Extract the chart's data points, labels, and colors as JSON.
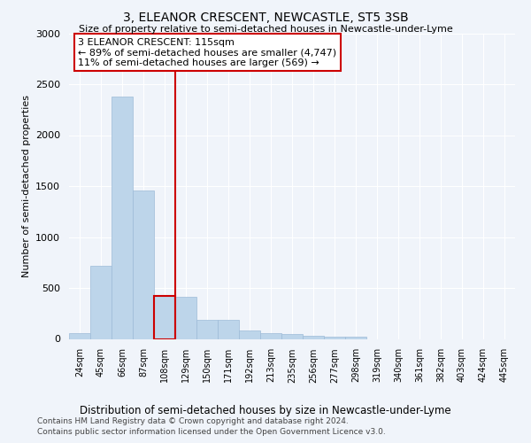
{
  "title": "3, ELEANOR CRESCENT, NEWCASTLE, ST5 3SB",
  "subtitle": "Size of property relative to semi-detached houses in Newcastle-under-Lyme",
  "xlabel_bottom": "Distribution of semi-detached houses by size in Newcastle-under-Lyme",
  "ylabel": "Number of semi-detached properties",
  "footer1": "Contains HM Land Registry data © Crown copyright and database right 2024.",
  "footer2": "Contains public sector information licensed under the Open Government Licence v3.0.",
  "categories": [
    "24sqm",
    "45sqm",
    "66sqm",
    "87sqm",
    "108sqm",
    "129sqm",
    "150sqm",
    "171sqm",
    "192sqm",
    "213sqm",
    "235sqm",
    "256sqm",
    "277sqm",
    "298sqm",
    "319sqm",
    "340sqm",
    "361sqm",
    "382sqm",
    "403sqm",
    "424sqm",
    "445sqm"
  ],
  "values": [
    60,
    720,
    2380,
    1460,
    420,
    415,
    185,
    185,
    85,
    55,
    45,
    30,
    22,
    18,
    0,
    0,
    0,
    0,
    0,
    0,
    0
  ],
  "bar_color": "#bdd5ea",
  "bar_edge_color": "#9dbbd8",
  "highlight_bar_index": 4,
  "highlight_bar_color": "#bdd5ea",
  "highlight_bar_edge_color": "#cc0000",
  "vline_color": "#cc0000",
  "ylim": [
    0,
    3000
  ],
  "yticks": [
    0,
    500,
    1000,
    1500,
    2000,
    2500,
    3000
  ],
  "annotation_text": "3 ELEANOR CRESCENT: 115sqm",
  "annotation_line1": "← 89% of semi-detached houses are smaller (4,747)",
  "annotation_line2": "11% of semi-detached houses are larger (569) →",
  "annotation_box_color": "#ffffff",
  "annotation_box_edge": "#cc0000",
  "bg_color": "#f0f4fa",
  "plot_bg_color": "#f0f4fa",
  "grid_color": "#ffffff",
  "vline_position": 4.5
}
